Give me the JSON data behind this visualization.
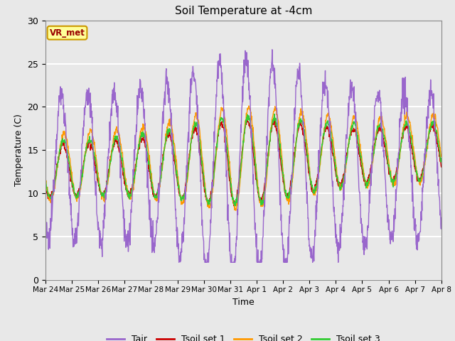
{
  "title": "Soil Temperature at -4cm",
  "xlabel": "Time",
  "ylabel": "Temperature (C)",
  "ylim": [
    0,
    30
  ],
  "background_color": "#e8e8e8",
  "plot_bg_color": "#e8e8e8",
  "grid_color": "#ffffff",
  "colors": {
    "Tair": "#9966cc",
    "Tsoil1": "#cc0000",
    "Tsoil2": "#ff9900",
    "Tsoil3": "#33cc33"
  },
  "legend_labels": [
    "Tair",
    "Tsoil set 1",
    "Tsoil set 2",
    "Tsoil set 3"
  ],
  "annotation_text": "VR_met",
  "annotation_color": "#990000",
  "annotation_bg": "#ffff99",
  "annotation_edge": "#cc9900",
  "x_tick_labels": [
    "Mar 24",
    "Mar 25",
    "Mar 26",
    "Mar 27",
    "Mar 28",
    "Mar 29",
    "Mar 30",
    "Mar 31",
    "Apr 1",
    "Apr 2",
    "Apr 3",
    "Apr 4",
    "Apr 5",
    "Apr 6",
    "Apr 7",
    "Apr 8"
  ],
  "n_points": 1440
}
